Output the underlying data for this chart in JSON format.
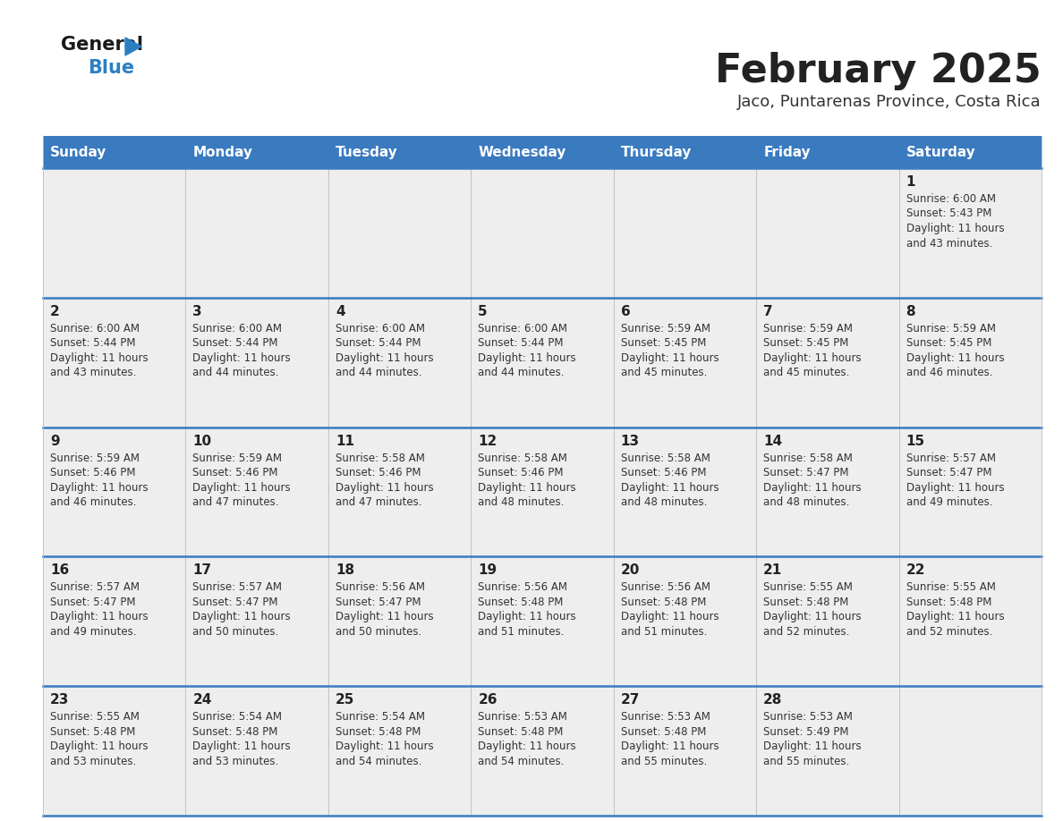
{
  "title": "February 2025",
  "subtitle": "Jaco, Puntarenas Province, Costa Rica",
  "header_bg_color": "#3a7abf",
  "header_text_color": "#ffffff",
  "cell_bg_color": "#eeeeee",
  "border_color": "#3a7abf",
  "thin_border_color": "#bbbbbb",
  "day_number_color": "#222222",
  "info_text_color": "#333333",
  "title_color": "#222222",
  "subtitle_color": "#333333",
  "days_of_week": [
    "Sunday",
    "Monday",
    "Tuesday",
    "Wednesday",
    "Thursday",
    "Friday",
    "Saturday"
  ],
  "calendar_data": [
    [
      null,
      null,
      null,
      null,
      null,
      null,
      {
        "day": "1",
        "sunrise": "6:00 AM",
        "sunset": "5:43 PM",
        "daylight": "11 hours and 43 minutes."
      }
    ],
    [
      {
        "day": "2",
        "sunrise": "6:00 AM",
        "sunset": "5:44 PM",
        "daylight": "11 hours and 43 minutes."
      },
      {
        "day": "3",
        "sunrise": "6:00 AM",
        "sunset": "5:44 PM",
        "daylight": "11 hours and 44 minutes."
      },
      {
        "day": "4",
        "sunrise": "6:00 AM",
        "sunset": "5:44 PM",
        "daylight": "11 hours and 44 minutes."
      },
      {
        "day": "5",
        "sunrise": "6:00 AM",
        "sunset": "5:44 PM",
        "daylight": "11 hours and 44 minutes."
      },
      {
        "day": "6",
        "sunrise": "5:59 AM",
        "sunset": "5:45 PM",
        "daylight": "11 hours and 45 minutes."
      },
      {
        "day": "7",
        "sunrise": "5:59 AM",
        "sunset": "5:45 PM",
        "daylight": "11 hours and 45 minutes."
      },
      {
        "day": "8",
        "sunrise": "5:59 AM",
        "sunset": "5:45 PM",
        "daylight": "11 hours and 46 minutes."
      }
    ],
    [
      {
        "day": "9",
        "sunrise": "5:59 AM",
        "sunset": "5:46 PM",
        "daylight": "11 hours and 46 minutes."
      },
      {
        "day": "10",
        "sunrise": "5:59 AM",
        "sunset": "5:46 PM",
        "daylight": "11 hours and 47 minutes."
      },
      {
        "day": "11",
        "sunrise": "5:58 AM",
        "sunset": "5:46 PM",
        "daylight": "11 hours and 47 minutes."
      },
      {
        "day": "12",
        "sunrise": "5:58 AM",
        "sunset": "5:46 PM",
        "daylight": "11 hours and 48 minutes."
      },
      {
        "day": "13",
        "sunrise": "5:58 AM",
        "sunset": "5:46 PM",
        "daylight": "11 hours and 48 minutes."
      },
      {
        "day": "14",
        "sunrise": "5:58 AM",
        "sunset": "5:47 PM",
        "daylight": "11 hours and 48 minutes."
      },
      {
        "day": "15",
        "sunrise": "5:57 AM",
        "sunset": "5:47 PM",
        "daylight": "11 hours and 49 minutes."
      }
    ],
    [
      {
        "day": "16",
        "sunrise": "5:57 AM",
        "sunset": "5:47 PM",
        "daylight": "11 hours and 49 minutes."
      },
      {
        "day": "17",
        "sunrise": "5:57 AM",
        "sunset": "5:47 PM",
        "daylight": "11 hours and 50 minutes."
      },
      {
        "day": "18",
        "sunrise": "5:56 AM",
        "sunset": "5:47 PM",
        "daylight": "11 hours and 50 minutes."
      },
      {
        "day": "19",
        "sunrise": "5:56 AM",
        "sunset": "5:48 PM",
        "daylight": "11 hours and 51 minutes."
      },
      {
        "day": "20",
        "sunrise": "5:56 AM",
        "sunset": "5:48 PM",
        "daylight": "11 hours and 51 minutes."
      },
      {
        "day": "21",
        "sunrise": "5:55 AM",
        "sunset": "5:48 PM",
        "daylight": "11 hours and 52 minutes."
      },
      {
        "day": "22",
        "sunrise": "5:55 AM",
        "sunset": "5:48 PM",
        "daylight": "11 hours and 52 minutes."
      }
    ],
    [
      {
        "day": "23",
        "sunrise": "5:55 AM",
        "sunset": "5:48 PM",
        "daylight": "11 hours and 53 minutes."
      },
      {
        "day": "24",
        "sunrise": "5:54 AM",
        "sunset": "5:48 PM",
        "daylight": "11 hours and 53 minutes."
      },
      {
        "day": "25",
        "sunrise": "5:54 AM",
        "sunset": "5:48 PM",
        "daylight": "11 hours and 54 minutes."
      },
      {
        "day": "26",
        "sunrise": "5:53 AM",
        "sunset": "5:48 PM",
        "daylight": "11 hours and 54 minutes."
      },
      {
        "day": "27",
        "sunrise": "5:53 AM",
        "sunset": "5:48 PM",
        "daylight": "11 hours and 55 minutes."
      },
      {
        "day": "28",
        "sunrise": "5:53 AM",
        "sunset": "5:49 PM",
        "daylight": "11 hours and 55 minutes."
      },
      null
    ]
  ]
}
